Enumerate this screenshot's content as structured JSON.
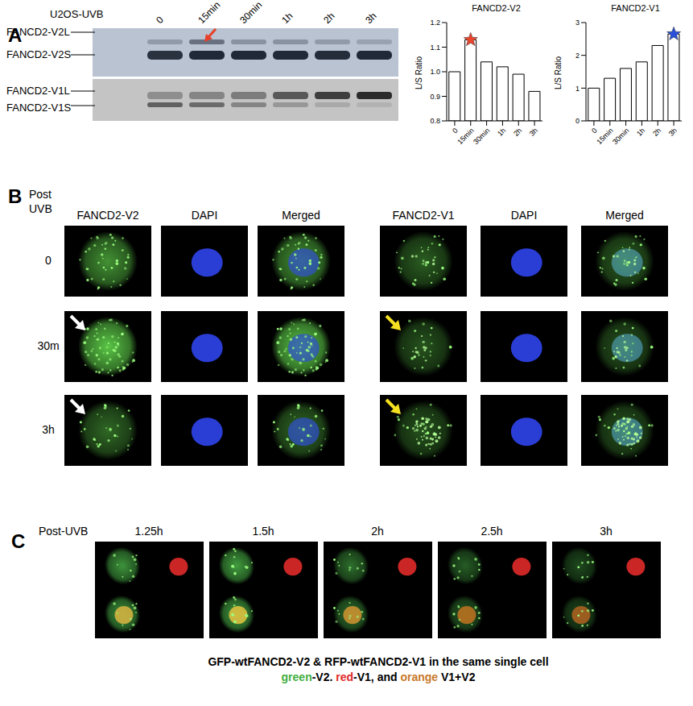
{
  "panel_labels": [
    "A",
    "B",
    "C"
  ],
  "panel_A": {
    "blot": {
      "title": "U2OS-UVB",
      "lanes": [
        "0",
        "15min",
        "30min",
        "1h",
        "2h",
        "3h"
      ],
      "bands": [
        "FANCD2-V2L",
        "FANCD2-V2S",
        "FANCD2-V1L",
        "FANCD2-V1S"
      ]
    }
  },
  "chart_data": [
    {
      "type": "bar",
      "title": "FANCD2-V2",
      "y_label": "L/S Ratio",
      "categories": [
        "0",
        "15min",
        "30min",
        "1h",
        "2h",
        "3h"
      ],
      "values": [
        1.0,
        1.13,
        1.04,
        1.02,
        0.99,
        0.92
      ],
      "color": "#ffffff",
      "ylim": [
        0.8,
        1.2
      ],
      "yticks": [
        0.8,
        0.9,
        {
          "value": 1,
          "label": "1.0"
        },
        1.1,
        1.2
      ],
      "annotations": [
        {
          "category": "15min",
          "marker": "star",
          "color": "#e8452c"
        }
      ]
    },
    {
      "type": "bar",
      "title": "FANCD2-V1",
      "y_label": "L/S Ratio",
      "categories": [
        "0",
        "15min",
        "30min",
        "1h",
        "2h",
        "3h"
      ],
      "values": [
        1.0,
        1.3,
        1.6,
        1.8,
        2.3,
        2.65
      ],
      "color": "#ffffff",
      "ylim": [
        0,
        3
      ],
      "yticks": [
        0,
        1,
        2,
        3
      ],
      "annotations": [
        {
          "category": "3h",
          "marker": "star",
          "color": "#2a4fd8"
        }
      ]
    }
  ],
  "panel_B": {
    "row_title": [
      "Post",
      "UVB"
    ],
    "columns": [
      "FANCD2-V2",
      "DAPI",
      "Merged",
      "FANCD2-V1",
      "DAPI",
      "Merged"
    ],
    "rows": [
      "0",
      "30m",
      "3h"
    ]
  },
  "panel_C": {
    "row_title": "Post-UVB",
    "times": [
      "1.25h",
      "1.5h",
      "2h",
      "2.5h",
      "3h"
    ],
    "caption": "GFP-wtFANCD2-V2 & RFP-wtFANCD2-V1 in the same single cell",
    "legend": [
      {
        "text": "green",
        "color": "#3fae3f"
      },
      {
        "text": "-V2. "
      },
      {
        "text": "red",
        "color": "#e02a2a"
      },
      {
        "text": "-V1, and "
      },
      {
        "text": "orange",
        "color": "#c8782a"
      },
      {
        "text": " V1+V2"
      }
    ]
  }
}
